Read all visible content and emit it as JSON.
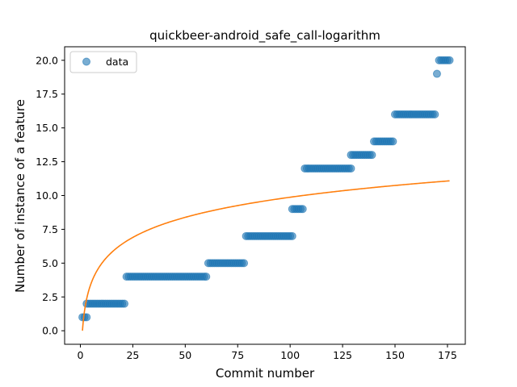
{
  "chart_data": {
    "type": "scatter",
    "title": "quickbeer-android_safe_call-logarithm",
    "xlabel": "Commit number",
    "ylabel": "Number of instance of a feature",
    "xlim": [
      -7.5,
      183.5
    ],
    "ylim": [
      -1.0,
      21.0
    ],
    "xticks": [
      0,
      25,
      50,
      75,
      100,
      125,
      150,
      175
    ],
    "yticks": [
      0.0,
      2.5,
      5.0,
      7.5,
      10.0,
      12.5,
      15.0,
      17.5,
      20.0
    ],
    "ytick_labels": [
      "0.0",
      "2.5",
      "5.0",
      "7.5",
      "10.0",
      "12.5",
      "15.0",
      "17.5",
      "20.0"
    ],
    "legend": {
      "position": "top-left",
      "entries": [
        "data"
      ]
    },
    "colors": {
      "data": "#1f77b4",
      "fit": "#ff7f0e"
    },
    "series": [
      {
        "name": "data",
        "kind": "scatter",
        "segments": [
          {
            "x_from": 1,
            "x_to": 3,
            "y": 1
          },
          {
            "x_from": 3,
            "x_to": 21,
            "y": 2
          },
          {
            "x_from": 22,
            "x_to": 60,
            "y": 4
          },
          {
            "x_from": 61,
            "x_to": 78,
            "y": 5
          },
          {
            "x_from": 79,
            "x_to": 101,
            "y": 7
          },
          {
            "x_from": 101,
            "x_to": 106,
            "y": 9
          },
          {
            "x_from": 107,
            "x_to": 129,
            "y": 12
          },
          {
            "x_from": 129,
            "x_to": 139,
            "y": 13
          },
          {
            "x_from": 140,
            "x_to": 149,
            "y": 14
          },
          {
            "x_from": 150,
            "x_to": 169,
            "y": 16
          },
          {
            "x_from": 170,
            "x_to": 170,
            "y": 19
          },
          {
            "x_from": 171,
            "x_to": 176,
            "y": 20
          }
        ]
      },
      {
        "kind": "line",
        "function": "y = 2.144 * ln(x)",
        "x_range": [
          1,
          176
        ]
      }
    ]
  }
}
